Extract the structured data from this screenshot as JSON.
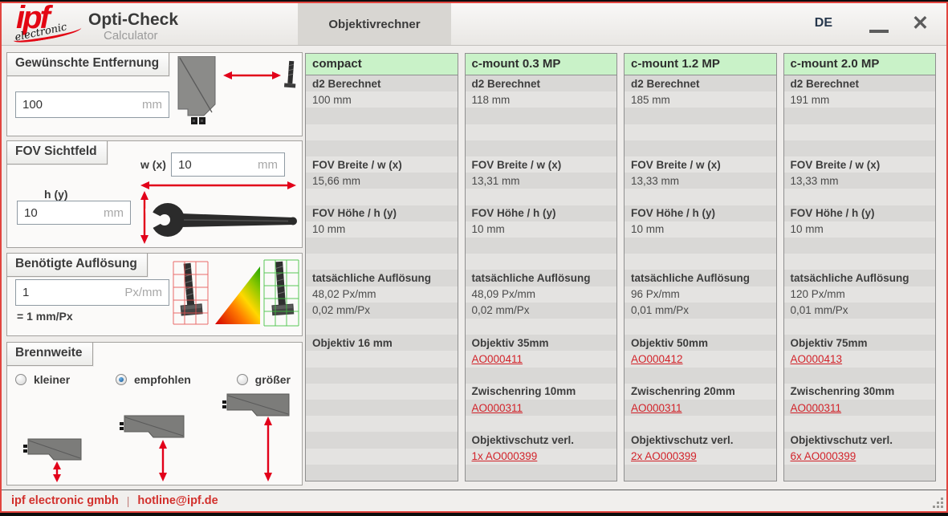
{
  "window": {
    "logo_main": "ipf",
    "logo_sub": "electronic",
    "title": "Opti-Check",
    "subtitle": "Calculator",
    "tab": "Objektivrechner",
    "language": "DE",
    "close_glyph": "✕"
  },
  "colors": {
    "accent_red": "#e30613",
    "link_red": "#d2232a",
    "result_header_green": "#c9f2c8",
    "window_border_red": "#e2453f",
    "status_text_red": "#d2302c"
  },
  "inputs": {
    "distance": {
      "header": "Gewünschte Entfernung",
      "value": "100",
      "unit": "mm"
    },
    "fov": {
      "header": "FOV Sichtfeld",
      "w_label": "w (x)",
      "w_value": "10",
      "w_unit": "mm",
      "h_label": "h (y)",
      "h_value": "10",
      "h_unit": "mm"
    },
    "resolution": {
      "header": "Benötigte Auflösung",
      "value": "1",
      "unit": "Px/mm",
      "note": "= 1 mm/Px"
    },
    "focal": {
      "header": "Brennweite",
      "options": [
        {
          "label": "kleiner",
          "selected": false
        },
        {
          "label": "empfohlen",
          "selected": true
        },
        {
          "label": "größer",
          "selected": false
        }
      ]
    }
  },
  "results": {
    "columns": [
      {
        "header": "compact",
        "rows": [
          {
            "t": "d2 Berechnet",
            "b": true
          },
          {
            "t": "100 mm"
          },
          {},
          {},
          {},
          {
            "t": "FOV Breite / w (x)",
            "b": true
          },
          {
            "t": "15,66 mm"
          },
          {},
          {
            "t": "FOV Höhe /  h (y)",
            "b": true
          },
          {
            "t": "10 mm"
          },
          {},
          {},
          {
            "t": "tatsächliche Auflösung",
            "b": true
          },
          {
            "t": "48,02 Px/mm"
          },
          {
            "t": "0,02 mm/Px"
          },
          {},
          {
            "t": "Objektiv 16 mm",
            "b": true
          },
          {},
          {},
          {},
          {},
          {},
          {},
          {},
          {}
        ]
      },
      {
        "header": "c-mount 0.3 MP",
        "rows": [
          {
            "t": "d2 Berechnet",
            "b": true
          },
          {
            "t": "118 mm"
          },
          {},
          {},
          {},
          {
            "t": "FOV Breite / w (x)",
            "b": true
          },
          {
            "t": "13,31 mm"
          },
          {},
          {
            "t": "FOV Höhe /  h (y)",
            "b": true
          },
          {
            "t": "10 mm"
          },
          {},
          {},
          {
            "t": "tatsächliche Auflösung",
            "b": true
          },
          {
            "t": "48,09 Px/mm"
          },
          {
            "t": "0,02 mm/Px"
          },
          {},
          {
            "t": "Objektiv 35mm",
            "b": true
          },
          {
            "t": "AO000411",
            "link": true
          },
          {},
          {
            "t": "Zwischenring 10mm",
            "b": true
          },
          {
            "t": "AO000311",
            "link": true
          },
          {},
          {
            "t": "Objektivschutz verl.",
            "b": true
          },
          {
            "t": "1x AO000399",
            "link": true
          },
          {}
        ]
      },
      {
        "header": "c-mount 1.2 MP",
        "rows": [
          {
            "t": "d2 Berechnet",
            "b": true
          },
          {
            "t": "185 mm"
          },
          {},
          {},
          {},
          {
            "t": "FOV Breite / w (x)",
            "b": true
          },
          {
            "t": "13,33 mm"
          },
          {},
          {
            "t": "FOV Höhe /  h (y)",
            "b": true
          },
          {
            "t": "10 mm"
          },
          {},
          {},
          {
            "t": "tatsächliche Auflösung",
            "b": true
          },
          {
            "t": "96 Px/mm"
          },
          {
            "t": "0,01 mm/Px"
          },
          {},
          {
            "t": "Objektiv 50mm",
            "b": true
          },
          {
            "t": "AO000412",
            "link": true
          },
          {},
          {
            "t": "Zwischenring 20mm",
            "b": true
          },
          {
            "t": "AO000311",
            "link": true
          },
          {},
          {
            "t": "Objektivschutz verl.",
            "b": true
          },
          {
            "t": "2x AO000399",
            "link": true
          },
          {}
        ]
      },
      {
        "header": "c-mount 2.0 MP",
        "rows": [
          {
            "t": "d2 Berechnet",
            "b": true
          },
          {
            "t": "191 mm"
          },
          {},
          {},
          {},
          {
            "t": "FOV Breite / w (x)",
            "b": true
          },
          {
            "t": "13,33 mm"
          },
          {},
          {
            "t": "FOV Höhe /  h (y)",
            "b": true
          },
          {
            "t": "10 mm"
          },
          {},
          {},
          {
            "t": "tatsächliche Auflösung",
            "b": true
          },
          {
            "t": "120 Px/mm"
          },
          {
            "t": "0,01 mm/Px"
          },
          {},
          {
            "t": "Objektiv 75mm",
            "b": true
          },
          {
            "t": "AO000413",
            "link": true
          },
          {},
          {
            "t": "Zwischenring 30mm",
            "b": true
          },
          {
            "t": "AO000311",
            "link": true
          },
          {},
          {
            "t": "Objektivschutz verl.",
            "b": true
          },
          {
            "t": "6x AO000399",
            "link": true
          },
          {}
        ]
      }
    ]
  },
  "statusbar": {
    "company": "ipf electronic gmbh",
    "separator": "|",
    "email": "hotline@ipf.de"
  }
}
